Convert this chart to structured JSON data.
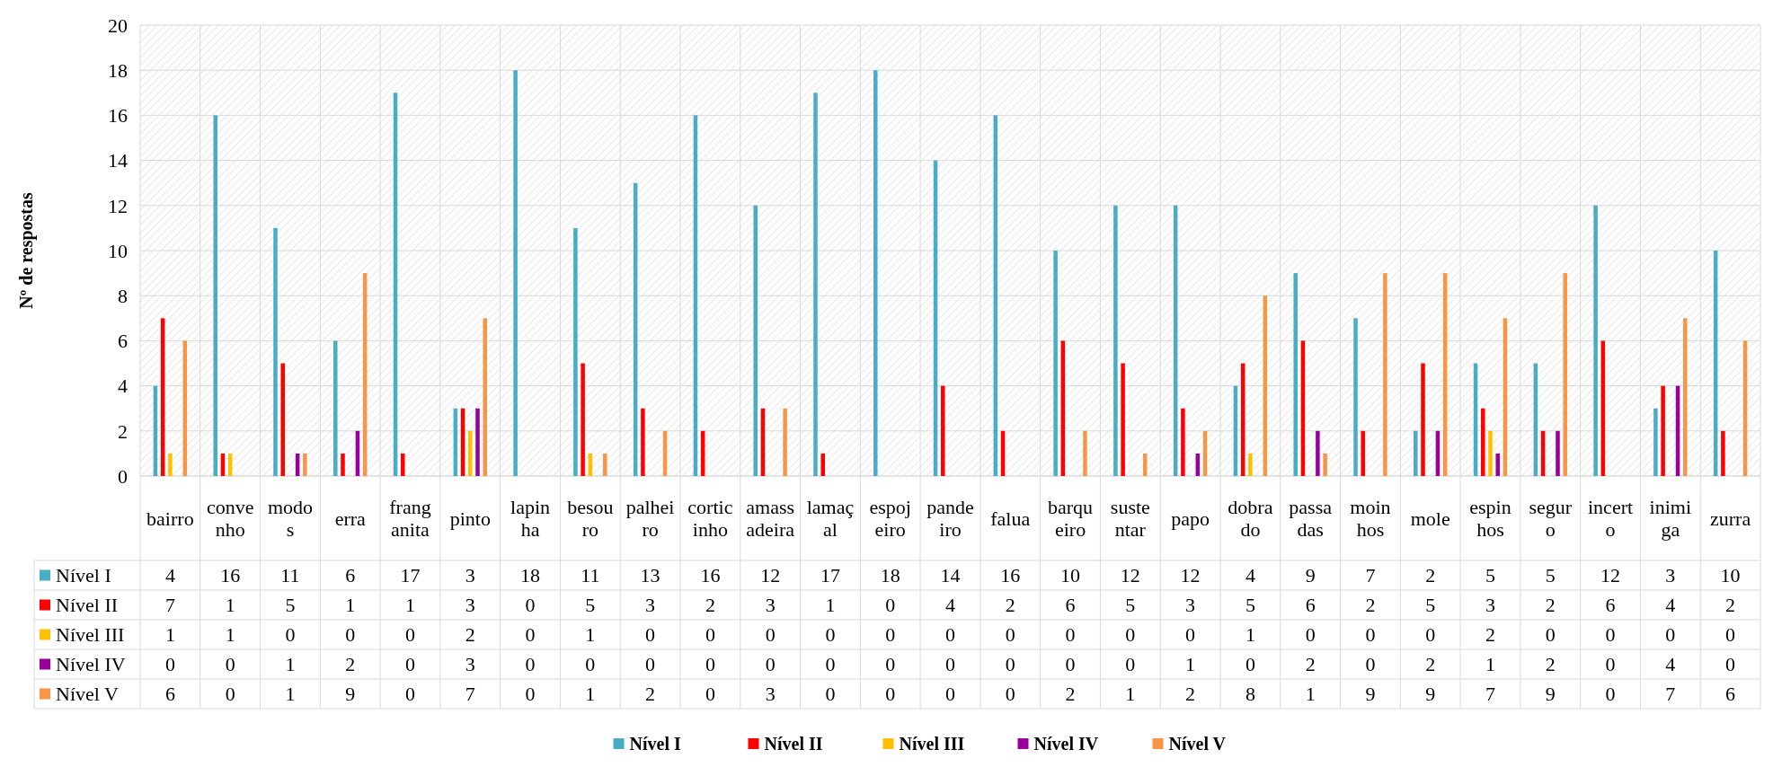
{
  "chart_data": {
    "type": "bar",
    "ylabel": "Nº de respostas",
    "categories": [
      "bairro",
      "convenho",
      "modos",
      "erra",
      "franganita",
      "pinto",
      "lapinha",
      "besouro",
      "palheiro",
      "corticinho",
      "amassadeira",
      "lamaçal",
      "espojeiro",
      "pandeiro",
      "falua",
      "barqueiro",
      "sustentar",
      "papo",
      "dobrado",
      "passadas",
      "moinhos",
      "mole",
      "espinhos",
      "seguro",
      "incerto",
      "inimiga",
      "zurra"
    ],
    "series": [
      {
        "name": "Nível I",
        "color": "#4bacc6",
        "values": [
          4,
          16,
          11,
          6,
          17,
          3,
          18,
          11,
          13,
          16,
          12,
          17,
          18,
          14,
          16,
          10,
          12,
          12,
          4,
          9,
          7,
          2,
          5,
          5,
          12,
          3,
          10
        ]
      },
      {
        "name": "Nível II",
        "color": "#ff0000",
        "values": [
          7,
          1,
          5,
          1,
          1,
          3,
          0,
          5,
          3,
          2,
          3,
          1,
          0,
          4,
          2,
          6,
          5,
          3,
          5,
          6,
          2,
          5,
          3,
          2,
          6,
          4,
          2
        ]
      },
      {
        "name": "Nível III",
        "color": "#ffc000",
        "values": [
          1,
          1,
          0,
          0,
          0,
          2,
          0,
          1,
          0,
          0,
          0,
          0,
          0,
          0,
          0,
          0,
          0,
          0,
          1,
          0,
          0,
          0,
          2,
          0,
          0,
          0,
          0
        ]
      },
      {
        "name": "Nível IV",
        "color": "#990099",
        "values": [
          0,
          0,
          1,
          2,
          0,
          3,
          0,
          0,
          0,
          0,
          0,
          0,
          0,
          0,
          0,
          0,
          0,
          1,
          0,
          2,
          0,
          2,
          1,
          2,
          0,
          4,
          0
        ]
      },
      {
        "name": "Nível V",
        "color": "#f79646",
        "values": [
          6,
          0,
          1,
          9,
          0,
          7,
          0,
          1,
          2,
          0,
          3,
          0,
          0,
          0,
          0,
          2,
          1,
          2,
          8,
          1,
          9,
          9,
          7,
          9,
          0,
          7,
          6
        ]
      }
    ],
    "ylim": [
      0,
      20
    ],
    "yticks": [
      0,
      2,
      4,
      6,
      8,
      10,
      12,
      14,
      16,
      18,
      20
    ],
    "grid": "y",
    "legend": "bottom",
    "data_labels": true
  }
}
